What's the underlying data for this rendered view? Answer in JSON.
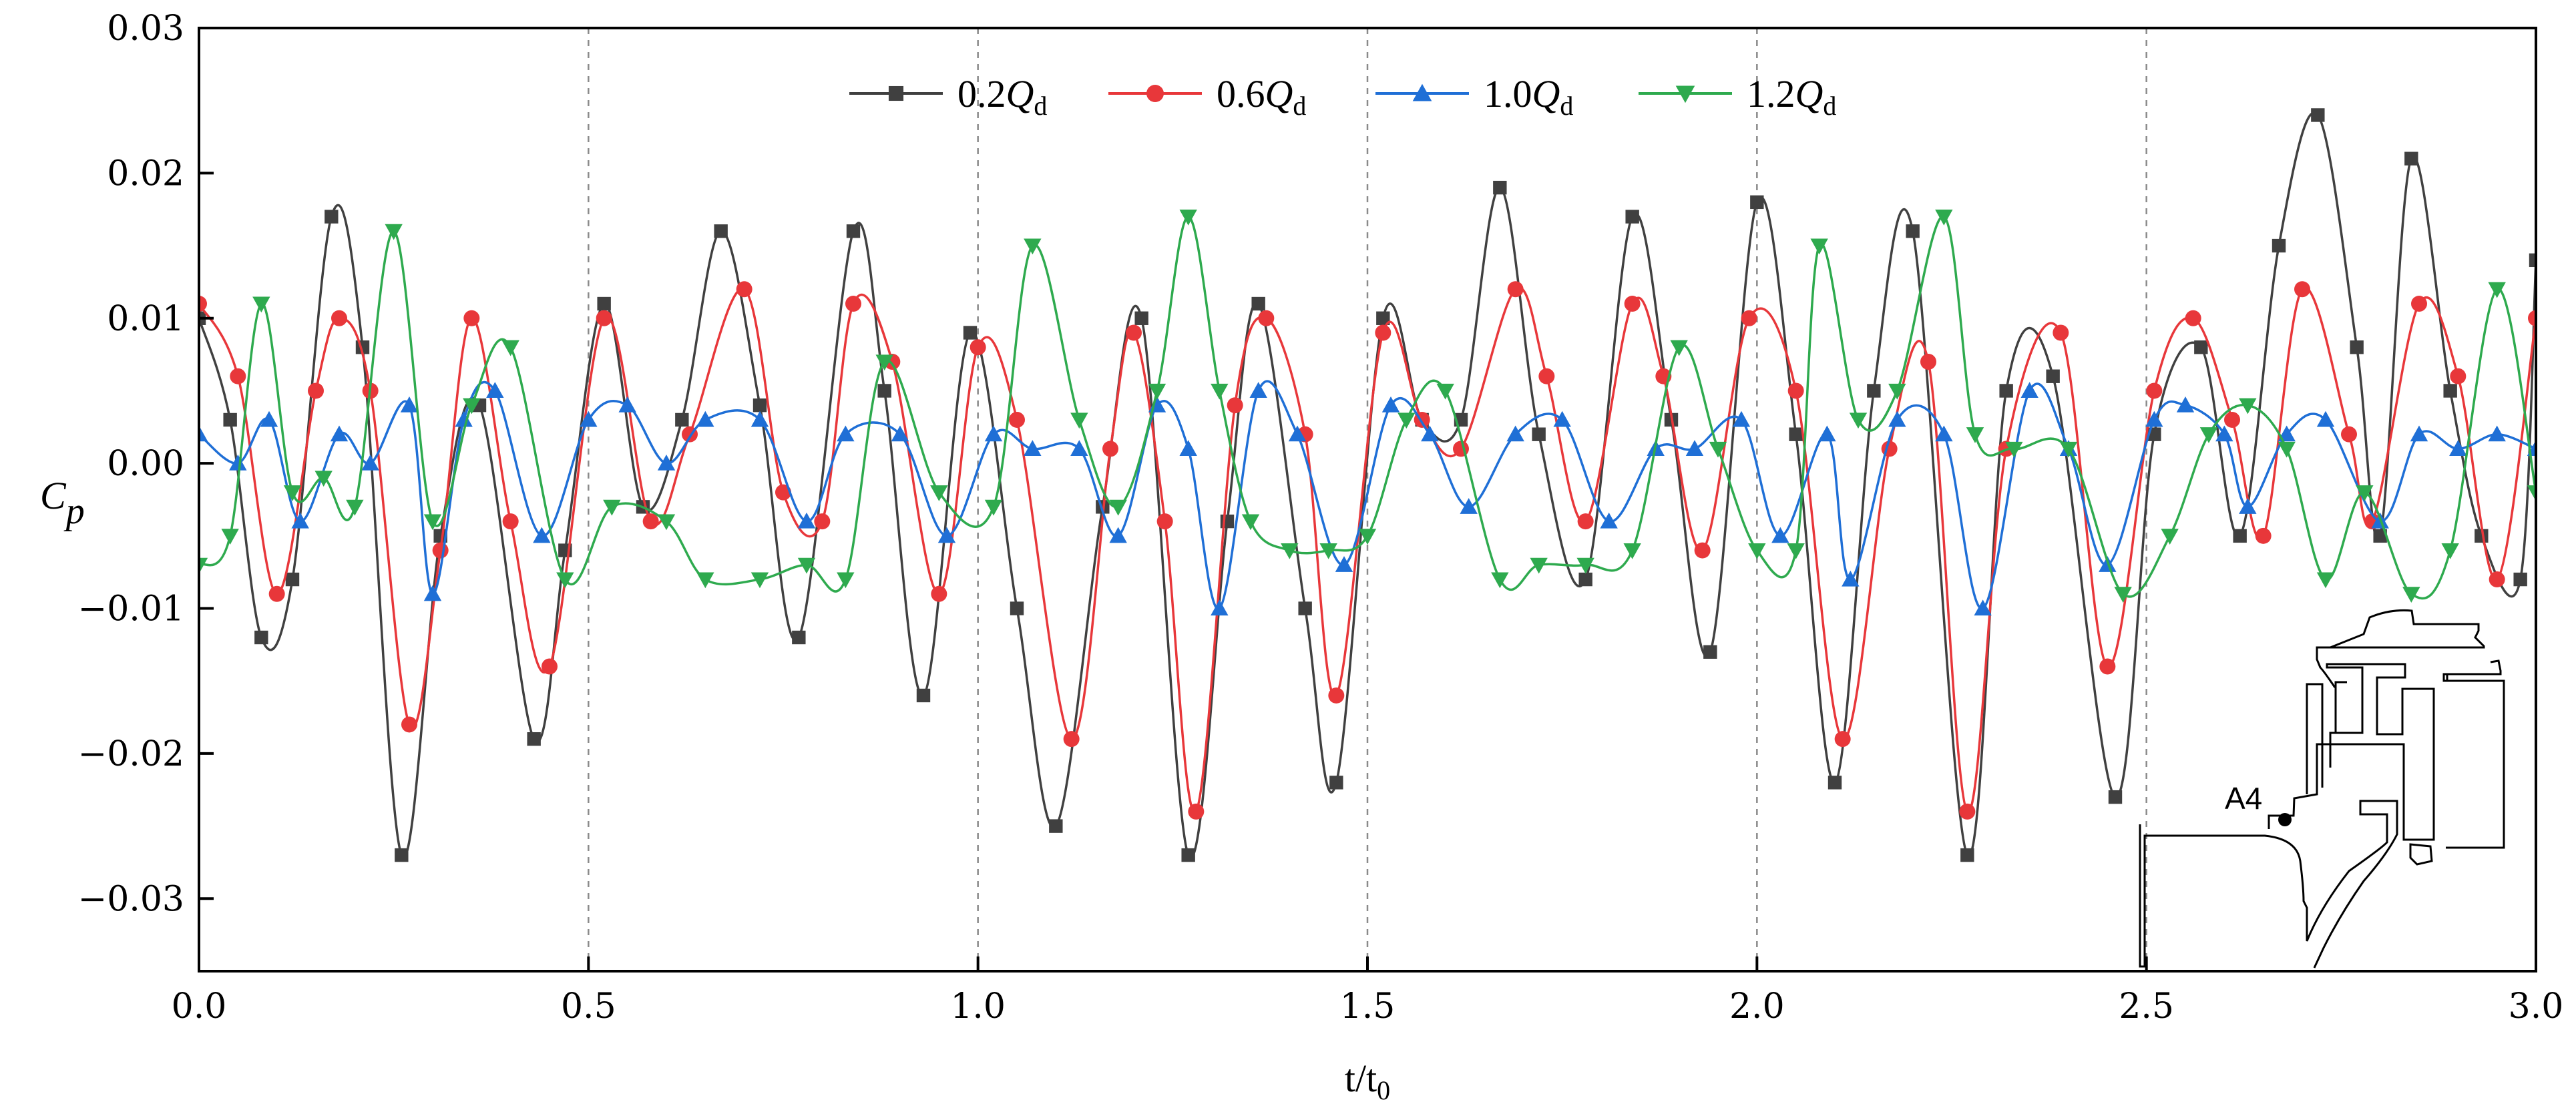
{
  "chart_data": {
    "type": "line",
    "xlabel": "t/t",
    "xlabel_sub": "0",
    "ylabel": "C",
    "ylabel_sub": "p",
    "xlim": [
      0.0,
      3.0
    ],
    "ylim": [
      -0.035,
      0.03
    ],
    "x_ticks": [
      0.0,
      0.5,
      1.0,
      1.5,
      2.0,
      2.5,
      3.0
    ],
    "x_tick_labels": [
      "0.0",
      "0.5",
      "1.0",
      "1.5",
      "2.0",
      "2.5",
      "3.0"
    ],
    "y_ticks": [
      0.03,
      0.02,
      0.01,
      0.0,
      -0.01,
      -0.02,
      -0.03
    ],
    "y_tick_labels": [
      "0.03",
      "0.02",
      "0.01",
      "0.00",
      "−0.01",
      "−0.02",
      "−0.03"
    ],
    "vertical_reference_lines": [
      0.5,
      1.0,
      1.5,
      2.0,
      2.5
    ],
    "legend_position": "top-center",
    "series": [
      {
        "name": "0.2Qd",
        "label_num": "0.2",
        "label_var": "Q",
        "label_sub": "d",
        "color": "#404040",
        "marker": "square",
        "points": [
          [
            0.0,
            0.01
          ],
          [
            0.04,
            0.003
          ],
          [
            0.08,
            -0.012
          ],
          [
            0.12,
            -0.008
          ],
          [
            0.17,
            0.017
          ],
          [
            0.21,
            0.008
          ],
          [
            0.26,
            -0.027
          ],
          [
            0.31,
            -0.005
          ],
          [
            0.36,
            0.004
          ],
          [
            0.43,
            -0.019
          ],
          [
            0.47,
            -0.006
          ],
          [
            0.52,
            0.011
          ],
          [
            0.57,
            -0.003
          ],
          [
            0.62,
            0.003
          ],
          [
            0.67,
            0.016
          ],
          [
            0.72,
            0.004
          ],
          [
            0.77,
            -0.012
          ],
          [
            0.84,
            0.016
          ],
          [
            0.88,
            0.005
          ],
          [
            0.93,
            -0.016
          ],
          [
            0.99,
            0.009
          ],
          [
            1.05,
            -0.01
          ],
          [
            1.1,
            -0.025
          ],
          [
            1.16,
            -0.003
          ],
          [
            1.21,
            0.01
          ],
          [
            1.27,
            -0.027
          ],
          [
            1.32,
            -0.004
          ],
          [
            1.36,
            0.011
          ],
          [
            1.42,
            -0.01
          ],
          [
            1.46,
            -0.022
          ],
          [
            1.52,
            0.01
          ],
          [
            1.57,
            0.003
          ],
          [
            1.62,
            0.003
          ],
          [
            1.67,
            0.019
          ],
          [
            1.72,
            0.002
          ],
          [
            1.78,
            -0.008
          ],
          [
            1.84,
            0.017
          ],
          [
            1.89,
            0.003
          ],
          [
            1.94,
            -0.013
          ],
          [
            2.0,
            0.018
          ],
          [
            2.05,
            0.002
          ],
          [
            2.1,
            -0.022
          ],
          [
            2.15,
            0.005
          ],
          [
            2.2,
            0.016
          ],
          [
            2.27,
            -0.027
          ],
          [
            2.32,
            0.005
          ],
          [
            2.38,
            0.006
          ],
          [
            2.46,
            -0.023
          ],
          [
            2.51,
            0.002
          ],
          [
            2.57,
            0.008
          ],
          [
            2.62,
            -0.005
          ],
          [
            2.67,
            0.015
          ],
          [
            2.72,
            0.024
          ],
          [
            2.77,
            0.008
          ],
          [
            2.8,
            -0.005
          ],
          [
            2.84,
            0.021
          ],
          [
            2.89,
            0.005
          ],
          [
            2.93,
            -0.005
          ],
          [
            2.98,
            -0.008
          ],
          [
            3.0,
            0.014
          ]
        ]
      },
      {
        "name": "0.6Qd",
        "label_num": "0.6",
        "label_var": "Q",
        "label_sub": "d",
        "color": "#e8373a",
        "marker": "circle",
        "points": [
          [
            0.0,
            0.011
          ],
          [
            0.05,
            0.006
          ],
          [
            0.1,
            -0.009
          ],
          [
            0.15,
            0.005
          ],
          [
            0.18,
            0.01
          ],
          [
            0.22,
            0.005
          ],
          [
            0.27,
            -0.018
          ],
          [
            0.31,
            -0.006
          ],
          [
            0.35,
            0.01
          ],
          [
            0.4,
            -0.004
          ],
          [
            0.45,
            -0.014
          ],
          [
            0.52,
            0.01
          ],
          [
            0.58,
            -0.004
          ],
          [
            0.63,
            0.002
          ],
          [
            0.7,
            0.012
          ],
          [
            0.75,
            -0.002
          ],
          [
            0.8,
            -0.004
          ],
          [
            0.84,
            0.011
          ],
          [
            0.89,
            0.007
          ],
          [
            0.95,
            -0.009
          ],
          [
            1.0,
            0.008
          ],
          [
            1.05,
            0.003
          ],
          [
            1.12,
            -0.019
          ],
          [
            1.17,
            0.001
          ],
          [
            1.2,
            0.009
          ],
          [
            1.24,
            -0.004
          ],
          [
            1.28,
            -0.024
          ],
          [
            1.33,
            0.004
          ],
          [
            1.37,
            0.01
          ],
          [
            1.42,
            0.002
          ],
          [
            1.46,
            -0.016
          ],
          [
            1.52,
            0.009
          ],
          [
            1.57,
            0.003
          ],
          [
            1.62,
            0.001
          ],
          [
            1.69,
            0.012
          ],
          [
            1.73,
            0.006
          ],
          [
            1.78,
            -0.004
          ],
          [
            1.84,
            0.011
          ],
          [
            1.88,
            0.006
          ],
          [
            1.93,
            -0.006
          ],
          [
            1.99,
            0.01
          ],
          [
            2.05,
            0.005
          ],
          [
            2.11,
            -0.019
          ],
          [
            2.17,
            0.001
          ],
          [
            2.22,
            0.007
          ],
          [
            2.27,
            -0.024
          ],
          [
            2.32,
            0.001
          ],
          [
            2.39,
            0.009
          ],
          [
            2.45,
            -0.014
          ],
          [
            2.51,
            0.005
          ],
          [
            2.56,
            0.01
          ],
          [
            2.61,
            0.003
          ],
          [
            2.65,
            -0.005
          ],
          [
            2.7,
            0.012
          ],
          [
            2.76,
            0.002
          ],
          [
            2.79,
            -0.004
          ],
          [
            2.85,
            0.011
          ],
          [
            2.9,
            0.006
          ],
          [
            2.95,
            -0.008
          ],
          [
            3.0,
            0.01
          ]
        ]
      },
      {
        "name": "1.0Qd",
        "label_num": "1.0",
        "label_var": "Q",
        "label_sub": "d",
        "color": "#1f6fd6",
        "marker": "triangle-up",
        "points": [
          [
            0.0,
            0.002
          ],
          [
            0.05,
            0.0
          ],
          [
            0.09,
            0.003
          ],
          [
            0.13,
            -0.004
          ],
          [
            0.18,
            0.002
          ],
          [
            0.22,
            0.0
          ],
          [
            0.27,
            0.004
          ],
          [
            0.3,
            -0.009
          ],
          [
            0.34,
            0.003
          ],
          [
            0.38,
            0.005
          ],
          [
            0.44,
            -0.005
          ],
          [
            0.5,
            0.003
          ],
          [
            0.55,
            0.004
          ],
          [
            0.6,
            0.0
          ],
          [
            0.65,
            0.003
          ],
          [
            0.72,
            0.003
          ],
          [
            0.78,
            -0.004
          ],
          [
            0.83,
            0.002
          ],
          [
            0.9,
            0.002
          ],
          [
            0.96,
            -0.005
          ],
          [
            1.02,
            0.002
          ],
          [
            1.07,
            0.001
          ],
          [
            1.13,
            0.001
          ],
          [
            1.18,
            -0.005
          ],
          [
            1.23,
            0.004
          ],
          [
            1.27,
            0.001
          ],
          [
            1.31,
            -0.01
          ],
          [
            1.36,
            0.005
          ],
          [
            1.41,
            0.002
          ],
          [
            1.47,
            -0.007
          ],
          [
            1.53,
            0.004
          ],
          [
            1.58,
            0.002
          ],
          [
            1.63,
            -0.003
          ],
          [
            1.69,
            0.002
          ],
          [
            1.75,
            0.003
          ],
          [
            1.81,
            -0.004
          ],
          [
            1.87,
            0.001
          ],
          [
            1.92,
            0.001
          ],
          [
            1.98,
            0.003
          ],
          [
            2.03,
            -0.005
          ],
          [
            2.09,
            0.002
          ],
          [
            2.12,
            -0.008
          ],
          [
            2.18,
            0.003
          ],
          [
            2.24,
            0.002
          ],
          [
            2.29,
            -0.01
          ],
          [
            2.35,
            0.005
          ],
          [
            2.4,
            0.001
          ],
          [
            2.45,
            -0.007
          ],
          [
            2.51,
            0.003
          ],
          [
            2.55,
            0.004
          ],
          [
            2.6,
            0.002
          ],
          [
            2.63,
            -0.003
          ],
          [
            2.68,
            0.002
          ],
          [
            2.73,
            0.003
          ],
          [
            2.8,
            -0.004
          ],
          [
            2.85,
            0.002
          ],
          [
            2.9,
            0.001
          ],
          [
            2.95,
            0.002
          ],
          [
            3.0,
            0.001
          ]
        ]
      },
      {
        "name": "1.2Qd",
        "label_num": "1.2",
        "label_var": "Q",
        "label_sub": "d",
        "color": "#2eaa4e",
        "marker": "triangle-down",
        "points": [
          [
            0.0,
            -0.007
          ],
          [
            0.04,
            -0.005
          ],
          [
            0.08,
            0.011
          ],
          [
            0.12,
            -0.002
          ],
          [
            0.16,
            -0.001
          ],
          [
            0.2,
            -0.003
          ],
          [
            0.25,
            0.016
          ],
          [
            0.3,
            -0.004
          ],
          [
            0.35,
            0.004
          ],
          [
            0.4,
            0.008
          ],
          [
            0.47,
            -0.008
          ],
          [
            0.53,
            -0.003
          ],
          [
            0.6,
            -0.004
          ],
          [
            0.65,
            -0.008
          ],
          [
            0.72,
            -0.008
          ],
          [
            0.78,
            -0.007
          ],
          [
            0.83,
            -0.008
          ],
          [
            0.88,
            0.007
          ],
          [
            0.95,
            -0.002
          ],
          [
            1.02,
            -0.003
          ],
          [
            1.07,
            0.015
          ],
          [
            1.13,
            0.003
          ],
          [
            1.18,
            -0.003
          ],
          [
            1.23,
            0.005
          ],
          [
            1.27,
            0.017
          ],
          [
            1.31,
            0.005
          ],
          [
            1.35,
            -0.004
          ],
          [
            1.4,
            -0.006
          ],
          [
            1.45,
            -0.006
          ],
          [
            1.5,
            -0.005
          ],
          [
            1.55,
            0.003
          ],
          [
            1.6,
            0.005
          ],
          [
            1.67,
            -0.008
          ],
          [
            1.72,
            -0.007
          ],
          [
            1.78,
            -0.007
          ],
          [
            1.84,
            -0.006
          ],
          [
            1.9,
            0.008
          ],
          [
            1.95,
            0.001
          ],
          [
            2.0,
            -0.006
          ],
          [
            2.05,
            -0.006
          ],
          [
            2.08,
            0.015
          ],
          [
            2.13,
            0.003
          ],
          [
            2.18,
            0.005
          ],
          [
            2.24,
            0.017
          ],
          [
            2.28,
            0.002
          ],
          [
            2.33,
            0.001
          ],
          [
            2.4,
            0.001
          ],
          [
            2.47,
            -0.009
          ],
          [
            2.53,
            -0.005
          ],
          [
            2.58,
            0.002
          ],
          [
            2.63,
            0.004
          ],
          [
            2.68,
            0.001
          ],
          [
            2.73,
            -0.008
          ],
          [
            2.78,
            -0.002
          ],
          [
            2.84,
            -0.009
          ],
          [
            2.89,
            -0.006
          ],
          [
            2.95,
            0.012
          ],
          [
            3.0,
            -0.002
          ]
        ]
      }
    ],
    "inset": {
      "label": "A4",
      "description": "pump cross-section with monitoring point"
    }
  }
}
